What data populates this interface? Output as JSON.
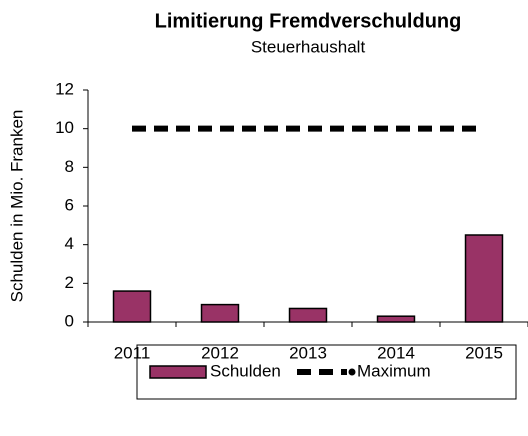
{
  "chart_data": {
    "type": "bar",
    "title": "Limitierung Fremdverschuldung",
    "subtitle": "Steuerhaushalt",
    "y_label": "Schulden in Mio. Franken",
    "categories": [
      "2011",
      "2012",
      "2013",
      "2014",
      "2015"
    ],
    "series": [
      {
        "name": "Schulden",
        "type": "bar",
        "color": "#993366",
        "values": [
          1.6,
          0.9,
          0.7,
          0.3,
          4.5
        ]
      },
      {
        "name": "Maximum",
        "type": "line",
        "color": "#000000",
        "values": [
          10,
          10,
          10,
          10,
          10
        ]
      }
    ],
    "ylim": [
      0,
      12
    ],
    "yticks": [
      0,
      2,
      4,
      6,
      8,
      10,
      12
    ],
    "grid": false,
    "legend": "bottom"
  }
}
